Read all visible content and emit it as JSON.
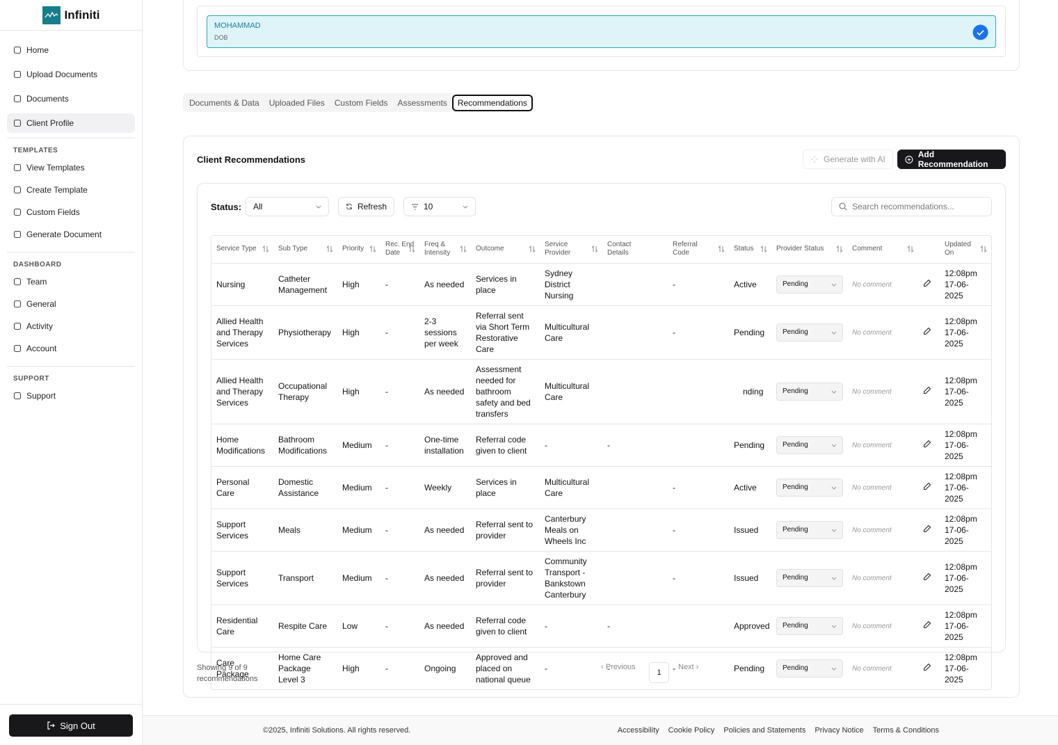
{
  "sidebar": {
    "brand": "Infiniti",
    "nav": [
      "Home",
      "Upload Documents",
      "Documents",
      "Client Profile"
    ],
    "active": 3,
    "sections": [
      {
        "title": "TEMPLATES",
        "items": [
          "View Templates",
          "Create Template",
          "Custom Fields",
          "Generate Document"
        ]
      },
      {
        "title": "DASHBOARD",
        "items": [
          "Team",
          "General",
          "Activity",
          "Account"
        ]
      },
      {
        "title": "SUPPORT",
        "items": [
          "Support"
        ]
      }
    ],
    "sign_out": "Sign Out"
  },
  "client": {
    "name": "MOHAMMAD",
    "dob_label": "DOB"
  },
  "tabs": {
    "items": [
      "Documents & Data",
      "Uploaded Files",
      "Custom Fields",
      "Assessments",
      "Recommendations"
    ],
    "active": 4
  },
  "panel": {
    "title": "Client Recommendations",
    "generate_ai": "Generate with AI",
    "add": "Add Recommendation"
  },
  "filters": {
    "status_label": "Status:",
    "status_value": "All",
    "refresh": "Refresh",
    "page_size": "10",
    "search_placeholder": "Search recommendations..."
  },
  "table": {
    "headers": [
      "Service Type",
      "Sub Type",
      "Priority",
      "Rec. End Date",
      "Freq & Intensity",
      "Outcome",
      "Service Provider",
      "Contact Details",
      "Referral Code",
      "Status",
      "Provider Status",
      "Comment",
      "Updated On"
    ],
    "rows": [
      {
        "service_type": "Nursing",
        "sub_type": "Catheter Management",
        "priority": "High",
        "end_date": "-",
        "freq": "As needed",
        "outcome": "Services in place",
        "provider": "Sydney District Nursing",
        "contact": null,
        "referral": "-",
        "status": "Active",
        "provider_status": "Pending",
        "comment": "No comment",
        "time": "12:08pm",
        "date": "17-06-2025"
      },
      {
        "service_type": "Allied Health and Therapy Services",
        "sub_type": "Physiotherapy",
        "priority": "High",
        "end_date": "-",
        "freq": "2-3 sessions per week",
        "outcome": "Referral sent via Short Term Restorative Care",
        "provider": "Multicultural Care",
        "contact": null,
        "referral": "-",
        "status": "Pending",
        "provider_status": "Pending",
        "comment": "No comment",
        "time": "12:08pm",
        "date": "17-06-2025"
      },
      {
        "service_type": "Allied Health and Therapy Services",
        "sub_type": "Occupational Therapy",
        "priority": "High",
        "end_date": "-",
        "freq": "As needed",
        "outcome": "Assessment needed for bathroom safety and bed transfers",
        "provider": "Multicultural Care",
        "contact": null,
        "referral": null,
        "status": "nding",
        "provider_status": "Pending",
        "comment": "No comment",
        "time": "12:08pm",
        "date": "17-06-2025"
      },
      {
        "service_type": "Home Modifications",
        "sub_type": "Bathroom Modifications",
        "priority": "Medium",
        "end_date": "-",
        "freq": "One-time installation",
        "outcome": "Referral code given to client",
        "provider": "-",
        "contact": "-",
        "referral": null,
        "status": "Pending",
        "provider_status": "Pending",
        "comment": "No comment",
        "time": "12:08pm",
        "date": "17-06-2025"
      },
      {
        "service_type": "Personal Care",
        "sub_type": "Domestic Assistance",
        "priority": "Medium",
        "end_date": "-",
        "freq": "Weekly",
        "outcome": "Services in place",
        "provider": "Multicultural Care",
        "contact": null,
        "referral": "-",
        "status": "Active",
        "provider_status": "Pending",
        "comment": "No comment",
        "time": "12:08pm",
        "date": "17-06-2025"
      },
      {
        "service_type": "Support Services",
        "sub_type": "Meals",
        "priority": "Medium",
        "end_date": "-",
        "freq": "As needed",
        "outcome": "Referral sent to provider",
        "provider": "Canterbury Meals on Wheels Inc",
        "contact": null,
        "referral": "-",
        "status": "Issued",
        "provider_status": "Pending",
        "comment": "No comment",
        "time": "12:08pm",
        "date": "17-06-2025"
      },
      {
        "service_type": "Support Services",
        "sub_type": "Transport",
        "priority": "Medium",
        "end_date": "-",
        "freq": "As needed",
        "outcome": "Referral sent to provider",
        "provider": "Community Transport - Bankstown Canterbury",
        "contact": null,
        "referral": "-",
        "status": "Issued",
        "provider_status": "Pending",
        "comment": "No comment",
        "time": "12:08pm",
        "date": "17-06-2025"
      },
      {
        "service_type": "Residential Care",
        "sub_type": "Respite Care",
        "priority": "Low",
        "end_date": "-",
        "freq": "As needed",
        "outcome": "Referral code given to client",
        "provider": "-",
        "contact": "-",
        "referral": null,
        "status": "Approved",
        "provider_status": "Pending",
        "comment": "No comment",
        "time": "12:08pm",
        "date": "17-06-2025"
      },
      {
        "service_type": "Care Package",
        "sub_type": "Home Care Package Level 3",
        "priority": "High",
        "end_date": "-",
        "freq": "Ongoing",
        "outcome": "Approved and placed on national queue",
        "provider": "-",
        "contact": "-",
        "referral": "-",
        "status": "Pending",
        "provider_status": "Pending",
        "comment": "No comment",
        "time": "12:08pm",
        "date": "17-06-2025"
      }
    ]
  },
  "pagination": {
    "summary": "Showing 9 of 9 recommendations",
    "previous": "Previous",
    "page": "1",
    "next": "Next"
  },
  "footer": {
    "copyright": "©2025, Infiniti Solutions. All rights reserved.",
    "links": [
      "Accessibility",
      "Cookie Policy",
      "Policies and Statements",
      "Privacy Notice",
      "Terms & Conditions"
    ]
  }
}
